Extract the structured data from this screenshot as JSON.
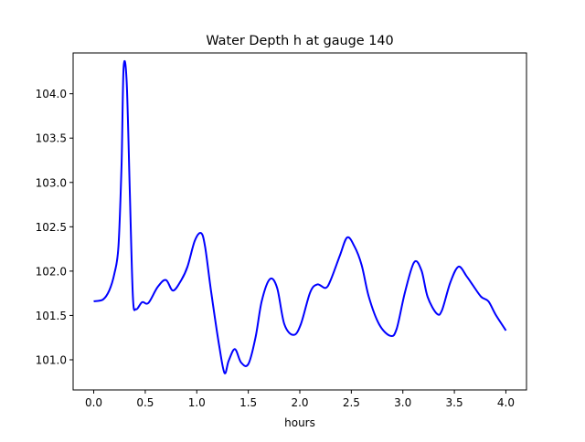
{
  "chart_data": {
    "type": "line",
    "title": "Water Depth h at gauge 140",
    "xlabel": "hours",
    "ylabel": "",
    "xlim": [
      -0.2,
      4.2
    ],
    "ylim": [
      100.66,
      104.46
    ],
    "grid": false,
    "xticks": [
      "0.0",
      "0.5",
      "1.0",
      "1.5",
      "2.0",
      "2.5",
      "3.0",
      "3.5",
      "4.0"
    ],
    "yticks": [
      "101.0",
      "101.5",
      "102.0",
      "102.5",
      "103.0",
      "103.5",
      "104.0"
    ],
    "series": [
      {
        "name": "h",
        "color": "#0000ff",
        "x": [
          0,
          0.09,
          0.15,
          0.2,
          0.24,
          0.27,
          0.29,
          0.32,
          0.35,
          0.38,
          0.41,
          0.47,
          0.53,
          0.62,
          0.7,
          0.77,
          0.85,
          0.91,
          0.98,
          1.04,
          1.08,
          1.14,
          1.22,
          1.27,
          1.31,
          1.37,
          1.43,
          1.5,
          1.57,
          1.63,
          1.71,
          1.78,
          1.85,
          1.94,
          2.01,
          2.1,
          2.17,
          2.25,
          2.3,
          2.39,
          2.46,
          2.53,
          2.6,
          2.67,
          2.77,
          2.88,
          2.94,
          3.02,
          3.11,
          3.18,
          3.24,
          3.33,
          3.38,
          3.46,
          3.54,
          3.62,
          3.68,
          3.76,
          3.83,
          3.9,
          4.0
        ],
        "y": [
          101.66,
          101.68,
          101.78,
          101.97,
          102.28,
          103.2,
          104.29,
          104.13,
          102.9,
          101.71,
          101.57,
          101.65,
          101.64,
          101.82,
          101.9,
          101.78,
          101.9,
          102.05,
          102.34,
          102.43,
          102.28,
          101.76,
          101.14,
          100.85,
          100.99,
          101.12,
          100.97,
          100.95,
          101.25,
          101.66,
          101.91,
          101.81,
          101.4,
          101.28,
          101.4,
          101.76,
          101.85,
          101.81,
          101.9,
          102.18,
          102.38,
          102.28,
          102.07,
          101.71,
          101.4,
          101.27,
          101.35,
          101.76,
          102.1,
          102.01,
          101.71,
          101.52,
          101.56,
          101.87,
          102.05,
          101.94,
          101.84,
          101.71,
          101.66,
          101.51,
          101.33
        ]
      }
    ]
  }
}
